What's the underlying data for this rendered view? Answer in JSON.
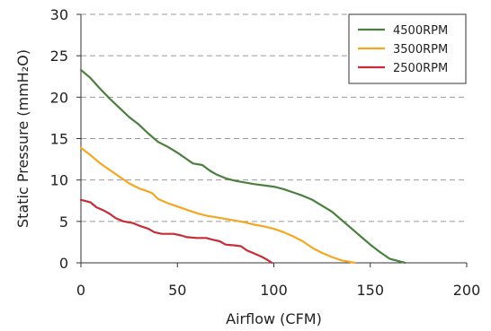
{
  "chart_data": {
    "type": "line",
    "title": "",
    "xlabel": "Airflow (CFM)",
    "ylabel": "Static Pressure (mmH₂O)",
    "xlim": [
      0,
      200
    ],
    "ylim": [
      0,
      30
    ],
    "x_ticks": [
      0,
      50,
      100,
      150,
      200
    ],
    "x_tick_labels": [
      "0",
      "50",
      "100",
      "150",
      "200"
    ],
    "y_ticks": [
      0,
      5,
      10,
      15,
      20,
      25,
      30
    ],
    "y_tick_labels": [
      "0",
      "5",
      "10",
      "15",
      "20",
      "25",
      "30"
    ],
    "grid": "horizontal dashed",
    "legend_position": "top-right",
    "series": [
      {
        "name": "4500RPM",
        "color": "#4a7f3f",
        "points": [
          [
            0,
            23.3
          ],
          [
            5,
            22.3
          ],
          [
            10,
            21.0
          ],
          [
            15,
            19.8
          ],
          [
            20,
            18.7
          ],
          [
            25,
            17.6
          ],
          [
            30,
            16.7
          ],
          [
            35,
            15.6
          ],
          [
            40,
            14.6
          ],
          [
            45,
            14.0
          ],
          [
            50,
            13.3
          ],
          [
            55,
            12.5
          ],
          [
            58,
            12.0
          ],
          [
            63,
            11.8
          ],
          [
            67,
            11.1
          ],
          [
            70,
            10.7
          ],
          [
            75,
            10.2
          ],
          [
            80,
            9.9
          ],
          [
            85,
            9.7
          ],
          [
            90,
            9.5
          ],
          [
            100,
            9.2
          ],
          [
            105,
            8.9
          ],
          [
            110,
            8.5
          ],
          [
            115,
            8.1
          ],
          [
            120,
            7.6
          ],
          [
            125,
            6.9
          ],
          [
            130,
            6.2
          ],
          [
            135,
            5.2
          ],
          [
            140,
            4.2
          ],
          [
            145,
            3.2
          ],
          [
            150,
            2.2
          ],
          [
            155,
            1.3
          ],
          [
            160,
            0.5
          ],
          [
            168,
            0
          ]
        ]
      },
      {
        "name": "3500RPM",
        "color": "#f5a623",
        "points": [
          [
            0,
            13.9
          ],
          [
            5,
            13.0
          ],
          [
            10,
            12.0
          ],
          [
            15,
            11.2
          ],
          [
            20,
            10.4
          ],
          [
            25,
            9.6
          ],
          [
            30,
            9.0
          ],
          [
            35,
            8.6
          ],
          [
            37,
            8.4
          ],
          [
            40,
            7.7
          ],
          [
            45,
            7.2
          ],
          [
            50,
            6.8
          ],
          [
            55,
            6.4
          ],
          [
            60,
            6.0
          ],
          [
            65,
            5.7
          ],
          [
            70,
            5.5
          ],
          [
            75,
            5.3
          ],
          [
            80,
            5.1
          ],
          [
            85,
            4.9
          ],
          [
            90,
            4.6
          ],
          [
            95,
            4.4
          ],
          [
            100,
            4.1
          ],
          [
            105,
            3.7
          ],
          [
            110,
            3.2
          ],
          [
            115,
            2.6
          ],
          [
            120,
            1.8
          ],
          [
            125,
            1.2
          ],
          [
            130,
            0.7
          ],
          [
            135,
            0.3
          ],
          [
            142,
            0
          ]
        ]
      },
      {
        "name": "2500RPM",
        "color": "#c62d37",
        "points": [
          [
            0,
            7.6
          ],
          [
            5,
            7.3
          ],
          [
            8,
            6.7
          ],
          [
            12,
            6.3
          ],
          [
            15,
            5.9
          ],
          [
            18,
            5.4
          ],
          [
            22,
            5.0
          ],
          [
            27,
            4.8
          ],
          [
            30,
            4.5
          ],
          [
            35,
            4.1
          ],
          [
            38,
            3.7
          ],
          [
            42,
            3.5
          ],
          [
            48,
            3.5
          ],
          [
            52,
            3.3
          ],
          [
            55,
            3.1
          ],
          [
            60,
            3.0
          ],
          [
            65,
            3.0
          ],
          [
            68,
            2.8
          ],
          [
            72,
            2.6
          ],
          [
            75,
            2.2
          ],
          [
            80,
            2.1
          ],
          [
            83,
            2.0
          ],
          [
            86,
            1.5
          ],
          [
            90,
            1.1
          ],
          [
            94,
            0.7
          ],
          [
            97,
            0.3
          ],
          [
            99,
            0
          ]
        ]
      }
    ]
  }
}
